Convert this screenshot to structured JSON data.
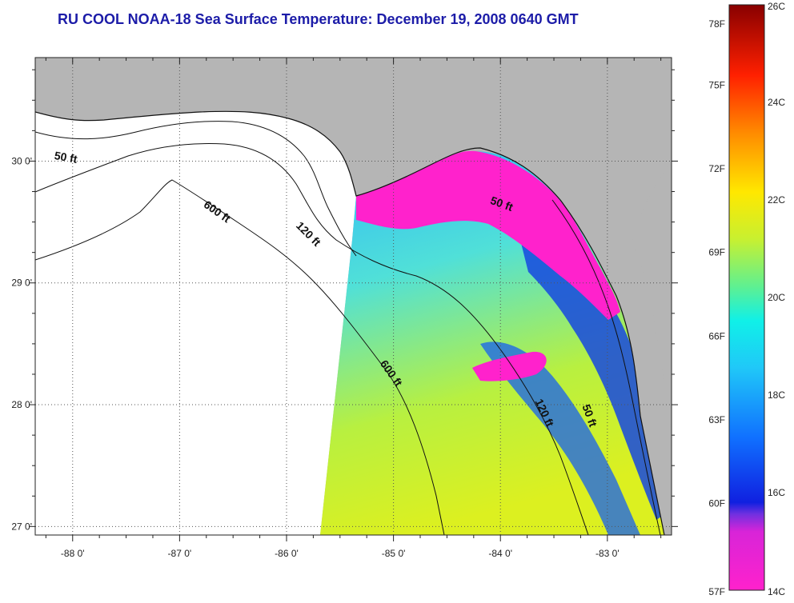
{
  "title": "RU COOL  NOAA-18  Sea Surface Temperature:  December 19, 2008 0640 GMT",
  "colors": {
    "land": "#b5b5b5",
    "no_data": "#ffffff",
    "grid": "#555555",
    "coast": "#111111",
    "title": "#1c1ca8"
  },
  "map": {
    "lon_range": [
      -88.35,
      -82.4
    ],
    "lat_range": [
      26.93,
      30.85
    ],
    "lon_labels": [
      "-88 0'",
      "-87 0'",
      "-86 0'",
      "-85 0'",
      "-84 0'",
      "-83 0'"
    ],
    "lat_labels": [
      "30 0'",
      "29 0'",
      "28 0'",
      "27 0'"
    ],
    "contour_labels": [
      {
        "text": "50 ft",
        "lon": -88.07,
        "lat": 30.0
      },
      {
        "text": "600 ft",
        "lon": -86.67,
        "lat": 29.56
      },
      {
        "text": "120 ft",
        "lon": -85.82,
        "lat": 29.38
      },
      {
        "text": "50 ft",
        "lon": -84.0,
        "lat": 29.62
      },
      {
        "text": "600 ft",
        "lon": -85.05,
        "lat": 28.24
      },
      {
        "text": "120 ft",
        "lon": -83.62,
        "lat": 27.92
      },
      {
        "text": "50 ft",
        "lon": -83.2,
        "lat": 27.9
      }
    ]
  },
  "colorbar": {
    "fahrenheit_labels": [
      "78F",
      "75F",
      "72F",
      "69F",
      "66F",
      "63F",
      "60F",
      "57F"
    ],
    "celsius_labels": [
      "26C",
      "24C",
      "22C",
      "20C",
      "18C",
      "16C",
      "14C"
    ],
    "min_c": 14,
    "max_c": 26,
    "stops": [
      "#ff22cc",
      "#b030e0",
      "#1020e0",
      "#1060ff",
      "#20b8f8",
      "#10f0f0",
      "#70f080",
      "#d8f020",
      "#ffe000",
      "#ff9000",
      "#ff3000",
      "#e00000",
      "#900000"
    ]
  }
}
